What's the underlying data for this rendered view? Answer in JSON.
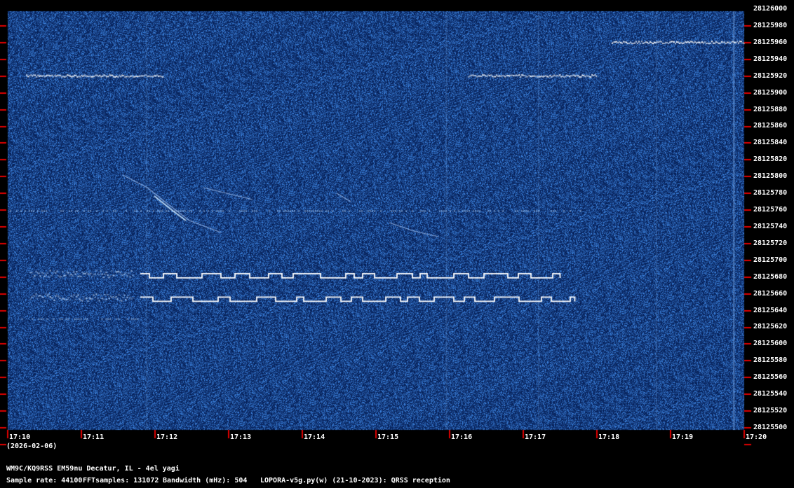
{
  "chart_data": {
    "type": "heatmap",
    "title": "",
    "xlabel": "",
    "ylabel": "",
    "x_ticks": [
      "17:10",
      "17:11",
      "17:12",
      "17:13",
      "17:14",
      "17:15",
      "17:16",
      "17:17",
      "17:18",
      "17:19",
      "17:20"
    ],
    "y_ticks": [
      "28126000",
      "28125980",
      "28125960",
      "28125940",
      "28125920",
      "28125900",
      "28125880",
      "28125860",
      "28125840",
      "28125820",
      "28125800",
      "28125780",
      "28125760",
      "28125740",
      "28125720",
      "28125700",
      "28125680",
      "28125660",
      "28125640",
      "28125620",
      "28125600",
      "28125580",
      "28125560",
      "28125540",
      "28125520",
      "28125500"
    ],
    "ylim": [
      28125500,
      28126000
    ],
    "xlim": [
      "17:10",
      "17:20"
    ],
    "date": "(2026-02-06)",
    "colors": {
      "background": "#0d2a66",
      "signal": "#ffffff",
      "tick": "#e00000"
    },
    "signals": [
      {
        "type": "dotted",
        "t_start": 0.25,
        "t_end": 2.1,
        "freq": 28125923
      },
      {
        "type": "dotted",
        "t_start": 6.25,
        "t_end": 8.0,
        "freq": 28125923
      },
      {
        "type": "dotted",
        "t_start": 8.2,
        "t_end": 10.0,
        "freq": 28125963
      },
      {
        "type": "faint",
        "t_start": 0.0,
        "t_end": 7.8,
        "freq": 28125762
      },
      {
        "type": "faint",
        "t_start": 0.1,
        "t_end": 1.8,
        "freq": 28125633
      },
      {
        "type": "fsk",
        "t_start": 1.8,
        "t_end": 7.5,
        "freq": 28125684
      },
      {
        "type": "fsk",
        "t_start": 1.8,
        "t_end": 7.7,
        "freq": 28125656
      },
      {
        "type": "blur",
        "t_start": 0.3,
        "t_end": 1.7,
        "freq": 28125686
      },
      {
        "type": "blur",
        "t_start": 0.3,
        "t_end": 1.7,
        "freq": 28125658
      }
    ]
  },
  "footer": {
    "station": "WM9C/KQ9RSS EM59nu Decatur, IL - 4el yagi",
    "sample_rate": "Sample rate: 44100",
    "fft_samples": "FFTsamples: 131072",
    "bandwidth": "Bandwidth (mHz): 504",
    "software": "LOPORA-v5g.py(w) (21-10-2023): QRSS reception"
  }
}
